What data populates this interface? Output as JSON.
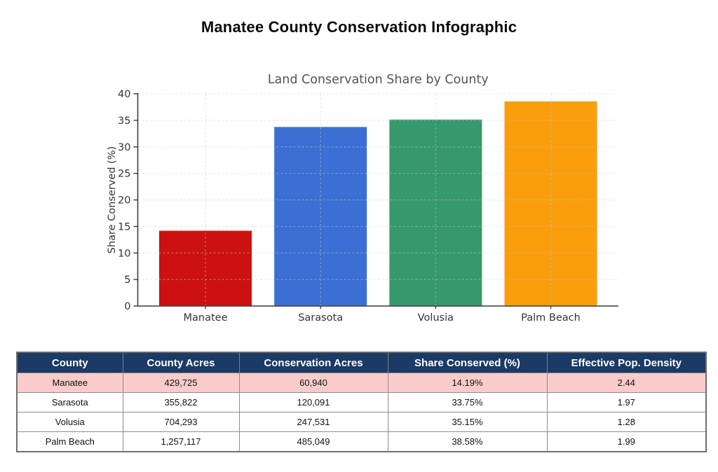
{
  "header": {
    "title": "Manatee County Conservation Infographic"
  },
  "chart_data": {
    "type": "bar",
    "title": "Land Conservation Share by County",
    "categories": [
      "Manatee",
      "Sarasota",
      "Volusia",
      "Palm Beach"
    ],
    "values": [
      14.19,
      33.75,
      35.15,
      38.58
    ],
    "colors": [
      "#cc1111",
      "#3b6fd4",
      "#36996b",
      "#fb9e0b"
    ],
    "xlabel": "",
    "ylabel": "Share Conserved (%)",
    "ylim": [
      0,
      40
    ],
    "ytick_step": 5,
    "yticks": [
      0,
      5,
      10,
      15,
      20,
      25,
      30,
      35,
      40
    ],
    "grid": "dashed, horizontal at y-ticks and vertical at bar centers",
    "legend": "none",
    "title_color": "#555555",
    "axis_text_color": "#333333",
    "spine_color": "#3a3a3a",
    "grid_color": "#c8c8c8"
  },
  "table": {
    "columns": [
      "County",
      "County Acres",
      "Conservation Acres",
      "Share Conserved (%)",
      "Effective Pop. Density"
    ],
    "rows": [
      {
        "cells": [
          "Manatee",
          "429,725",
          "60,940",
          "14.19%",
          "2.44"
        ],
        "highlighted": true
      },
      {
        "cells": [
          "Sarasota",
          "355,822",
          "120,091",
          "33.75%",
          "1.97"
        ],
        "highlighted": false
      },
      {
        "cells": [
          "Volusia",
          "704,293",
          "247,531",
          "35.15%",
          "1.28"
        ],
        "highlighted": false
      },
      {
        "cells": [
          "Palm Beach",
          "1,257,117",
          "485,049",
          "38.58%",
          "1.99"
        ],
        "highlighted": false
      }
    ],
    "colors": {
      "header_bg": "#1b3a66",
      "header_text": "#ffffff",
      "highlight_row_bg": "#f9cccb"
    }
  }
}
